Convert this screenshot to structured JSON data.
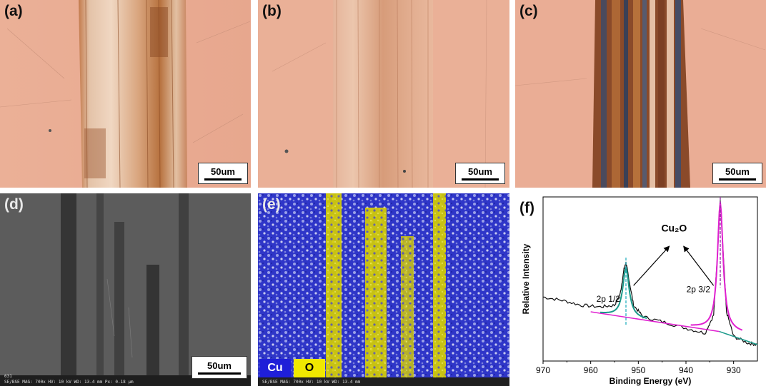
{
  "panels": {
    "a": {
      "label": "(a)",
      "scale": "50um"
    },
    "b": {
      "label": "(b)",
      "scale": "50um"
    },
    "c": {
      "label": "(c)",
      "scale": "50um"
    },
    "d": {
      "label": "(d)",
      "scale": "50um",
      "info_line1": "631",
      "info_line2": "SE/BSE   MAG: 700x   HV: 10 kV   WD: 13.4 mm   Px: 0.18 µm"
    },
    "e": {
      "label": "(e)",
      "legend_cu": "Cu",
      "legend_o": "O",
      "info_line1": "631",
      "info_line2": "SE/BSE   MAG: 700x   HV: 10 kV   WD: 13.4 mm"
    },
    "f": {
      "label": "(f)"
    }
  },
  "colors": {
    "copper": "#e8a98e",
    "sem_gray": "#5a5a5a",
    "cu_blue": "#2a2fd0",
    "o_yellow": "#e8e000",
    "fit_teal": "#1a9a8a",
    "fit_magenta": "#e020d0"
  },
  "chart_data": {
    "type": "line",
    "xlabel": "Binding Energy (eV)",
    "ylabel": "Relative Intensity",
    "xlim": [
      970,
      925
    ],
    "x_ticks": [
      "970",
      "960",
      "950",
      "940",
      "930"
    ],
    "ylim": [
      0,
      1
    ],
    "annotations": {
      "compound": "Cu₂O",
      "peak1_label": "2p 1/2",
      "peak2_label": "2p 3/2"
    },
    "peaks": [
      {
        "label": "2p 1/2",
        "x": 952.6,
        "height": 0.48
      },
      {
        "label": "2p 3/2",
        "x": 932.8,
        "height": 0.92
      }
    ],
    "series": [
      {
        "values": [
          [
            970,
            0.39
          ],
          [
            966,
            0.37
          ],
          [
            962,
            0.34
          ],
          [
            958,
            0.33
          ],
          [
            955,
            0.34
          ],
          [
            953.8,
            0.41
          ],
          [
            953,
            0.56
          ],
          [
            952.6,
            0.6
          ],
          [
            952.1,
            0.52
          ],
          [
            951,
            0.34
          ],
          [
            949,
            0.27
          ],
          [
            945,
            0.24
          ],
          [
            940,
            0.2
          ],
          [
            936,
            0.17
          ],
          [
            934.2,
            0.28
          ],
          [
            933.3,
            0.7
          ],
          [
            932.8,
            0.98
          ],
          [
            932.3,
            0.72
          ],
          [
            931.5,
            0.3
          ],
          [
            930,
            0.15
          ],
          [
            927,
            0.11
          ],
          [
            925,
            0.1
          ]
        ]
      },
      {
        "values": [
          [
            960,
            0.3
          ],
          [
            951,
            0.26
          ],
          [
            942,
            0.22
          ],
          [
            933,
            0.18
          ],
          [
            925,
            0.1
          ]
        ]
      }
    ]
  }
}
